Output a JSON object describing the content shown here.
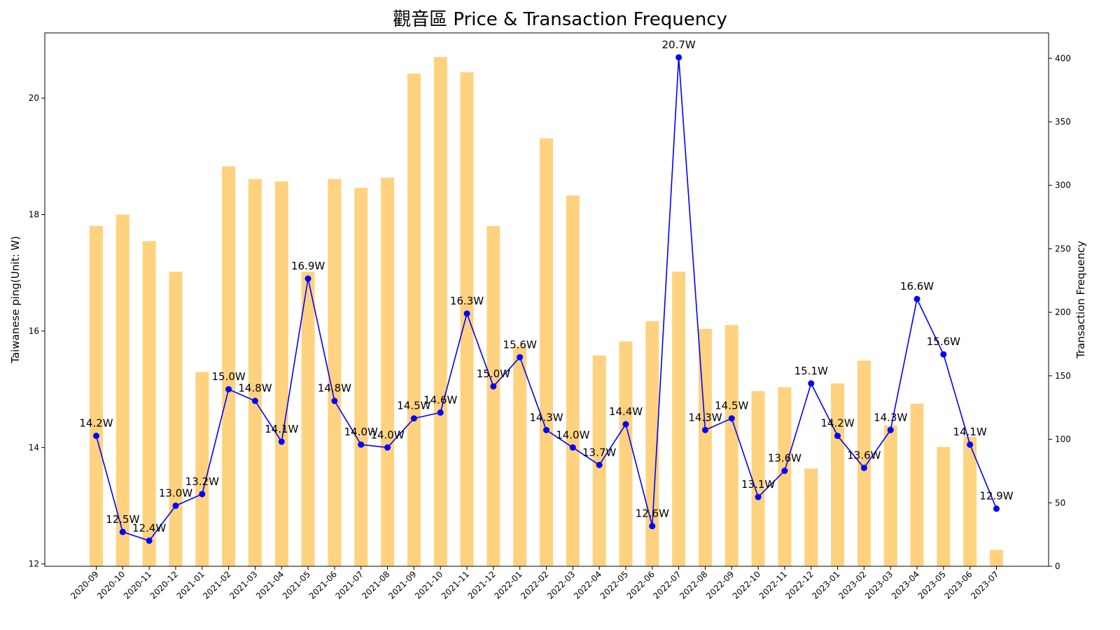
{
  "chart_data": {
    "type": "bar+line",
    "title": "觀音區 Price & Transaction Frequency",
    "ylabel": "Taiwanese ping(Unit: W)",
    "y2label": "Transaction Frequency",
    "categories": [
      "2020-09",
      "2020-10",
      "2020-11",
      "2020-12",
      "2021-01",
      "2021-02",
      "2021-03",
      "2021-04",
      "2021-05",
      "2021-06",
      "2021-07",
      "2021-08",
      "2021-09",
      "2021-10",
      "2021-11",
      "2021-12",
      "2022-01",
      "2022-02",
      "2022-03",
      "2022-04",
      "2022-05",
      "2022-06",
      "2022-07",
      "2022-08",
      "2022-09",
      "2022-10",
      "2022-11",
      "2022-12",
      "2023-01",
      "2023-02",
      "2023-03",
      "2023-04",
      "2023-05",
      "2023-06",
      "2023-07"
    ],
    "series": [
      {
        "type": "line",
        "axis": "left",
        "color": "#0000ff",
        "values": [
          14.2,
          12.55,
          12.4,
          13.0,
          13.2,
          15.0,
          14.8,
          14.1,
          16.9,
          14.8,
          14.05,
          14.0,
          14.5,
          14.6,
          16.3,
          15.05,
          15.55,
          14.3,
          14.0,
          13.7,
          14.4,
          12.65,
          20.7,
          14.3,
          14.5,
          13.15,
          13.6,
          15.1,
          14.2,
          13.65,
          14.3,
          16.55,
          15.6,
          14.05,
          12.95
        ]
      },
      {
        "type": "bar",
        "axis": "right",
        "color": "#ffa500",
        "opacity": 0.5,
        "values": [
          268,
          277,
          256,
          232,
          153,
          315,
          305,
          303,
          232,
          305,
          298,
          306,
          388,
          401,
          389,
          268,
          173,
          337,
          292,
          166,
          177,
          193,
          232,
          187,
          190,
          138,
          141,
          77,
          144,
          162,
          111,
          128,
          94,
          102,
          13
        ]
      }
    ],
    "data_labels": [
      "14.2W",
      "12.5W",
      "12.4W",
      "13.0W",
      "13.2W",
      "15.0W",
      "14.8W",
      "14.1W",
      "16.9W",
      "14.8W",
      "14.0W",
      "14.0W",
      "14.5W",
      "14.6W",
      "16.3W",
      "15.0W",
      "15.6W",
      "14.3W",
      "14.0W",
      "13.7W",
      "14.4W",
      "12.6W",
      "20.7W",
      "14.3W",
      "14.5W",
      "13.1W",
      "13.6W",
      "15.1W",
      "14.2W",
      "13.6W",
      "14.3W",
      "16.6W",
      "15.6W",
      "14.1W",
      "12.9W"
    ],
    "ylim": [
      11.96,
      21.12
    ],
    "yticks": [
      12,
      14,
      16,
      18,
      20
    ],
    "y2lim": [
      0,
      420
    ],
    "y2ticks": [
      0,
      50,
      100,
      150,
      200,
      250,
      300,
      350,
      400
    ],
    "grid": false
  }
}
